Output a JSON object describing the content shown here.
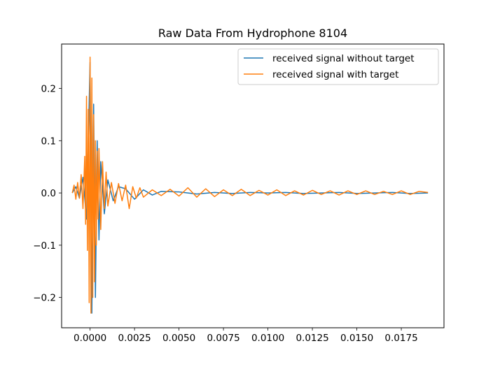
{
  "chart_data": {
    "type": "line",
    "title": "Raw Data From Hydrophone 8104",
    "xlabel": "",
    "ylabel": "",
    "xlim": [
      -0.0016,
      0.0199
    ],
    "ylim": [
      -0.258,
      0.285
    ],
    "xticks": [
      0.0,
      0.0025,
      0.005,
      0.0075,
      0.01,
      0.0125,
      0.015,
      0.0175
    ],
    "xtick_labels": [
      "0.0000",
      "0.0025",
      "0.0050",
      "0.0075",
      "0.0100",
      "0.0125",
      "0.0150",
      "0.0175"
    ],
    "yticks": [
      -0.2,
      -0.1,
      0.0,
      0.1,
      0.2
    ],
    "ytick_labels": [
      "−0.2",
      "−0.1",
      "0.0",
      "0.1",
      "0.2"
    ],
    "grid": false,
    "legend_position": "top-right",
    "series": [
      {
        "name": "received signal without target",
        "color": "#1f77b4",
        "x": [
          -0.001,
          -0.0008,
          -0.0006,
          -0.0004,
          -0.0002,
          0.0,
          0.0001,
          0.0002,
          0.0003,
          0.0004,
          0.0005,
          0.0006,
          0.0008,
          0.001,
          0.0013,
          0.0016,
          0.002,
          0.0025,
          0.003,
          0.0035,
          0.004,
          0.005,
          0.006,
          0.007,
          0.008,
          0.009,
          0.01,
          0.011,
          0.012,
          0.013,
          0.014,
          0.015,
          0.016,
          0.017,
          0.018,
          0.019
        ],
        "y": [
          0.0,
          0.012,
          -0.01,
          0.03,
          -0.05,
          0.25,
          -0.23,
          0.17,
          -0.2,
          0.1,
          -0.09,
          0.06,
          -0.04,
          0.025,
          -0.015,
          0.012,
          0.008,
          -0.012,
          0.006,
          -0.004,
          0.003,
          0.002,
          -0.002,
          0.001,
          -0.001,
          0.001,
          0.0,
          0.001,
          -0.001,
          0.0,
          0.001,
          -0.001,
          0.0,
          0.001,
          -0.001,
          0.0
        ]
      },
      {
        "name": "received signal with target",
        "color": "#ff7f0e",
        "x": [
          -0.001,
          -0.0009,
          -0.0008,
          -0.0007,
          -0.0006,
          -0.0005,
          -0.0004,
          -0.0003,
          -0.00025,
          -0.0002,
          -0.00015,
          -0.0001,
          -5e-05,
          0.0,
          5e-05,
          0.0001,
          0.00015,
          0.0002,
          0.00025,
          0.0003,
          0.00035,
          0.0004,
          0.00045,
          0.0005,
          0.0006,
          0.0007,
          0.0008,
          0.0009,
          0.001,
          0.0012,
          0.0014,
          0.0016,
          0.0018,
          0.002,
          0.0022,
          0.0024,
          0.0026,
          0.0028,
          0.003,
          0.0035,
          0.004,
          0.0045,
          0.005,
          0.0055,
          0.006,
          0.0065,
          0.007,
          0.0075,
          0.008,
          0.0085,
          0.009,
          0.0095,
          0.01,
          0.0105,
          0.011,
          0.0115,
          0.012,
          0.0125,
          0.013,
          0.0135,
          0.014,
          0.0145,
          0.015,
          0.0155,
          0.016,
          0.0165,
          0.017,
          0.0175,
          0.018,
          0.0185,
          0.019
        ],
        "y": [
          0.0,
          0.015,
          -0.012,
          0.02,
          -0.01,
          0.035,
          -0.03,
          0.07,
          -0.06,
          0.185,
          -0.11,
          0.16,
          -0.21,
          0.26,
          -0.23,
          0.22,
          -0.2,
          0.15,
          -0.17,
          0.1,
          -0.1,
          0.08,
          -0.05,
          0.085,
          -0.07,
          0.06,
          -0.03,
          0.04,
          -0.025,
          0.02,
          -0.02,
          0.018,
          -0.015,
          0.015,
          -0.03,
          0.012,
          -0.01,
          0.01,
          -0.008,
          0.006,
          -0.005,
          0.007,
          -0.006,
          0.01,
          -0.008,
          0.008,
          -0.007,
          0.006,
          -0.005,
          0.007,
          -0.005,
          0.005,
          -0.004,
          0.006,
          -0.005,
          0.004,
          -0.004,
          0.005,
          -0.003,
          0.004,
          -0.004,
          0.004,
          -0.003,
          0.004,
          -0.003,
          0.003,
          -0.003,
          0.004,
          -0.003,
          0.003,
          0.001
        ]
      }
    ]
  }
}
